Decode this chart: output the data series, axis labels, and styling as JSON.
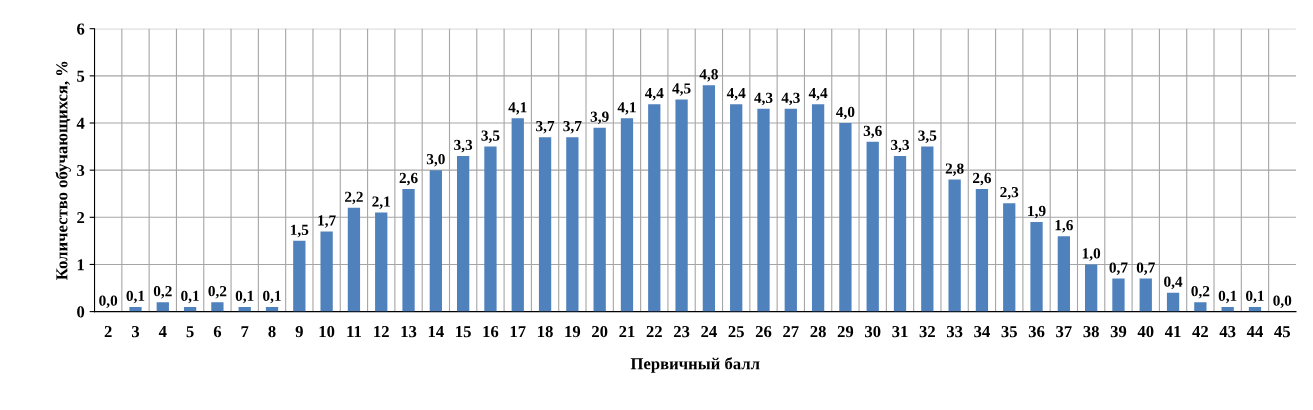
{
  "chart_data": {
    "type": "bar",
    "xlabel": "Первичный балл",
    "ylabel": "Количество обучающихся, %",
    "categories": [
      "2",
      "3",
      "4",
      "5",
      "6",
      "7",
      "8",
      "9",
      "10",
      "11",
      "12",
      "13",
      "14",
      "15",
      "16",
      "17",
      "18",
      "19",
      "20",
      "21",
      "22",
      "23",
      "24",
      "25",
      "26",
      "27",
      "28",
      "29",
      "30",
      "31",
      "32",
      "33",
      "34",
      "35",
      "36",
      "37",
      "38",
      "39",
      "40",
      "41",
      "42",
      "43",
      "44",
      "45"
    ],
    "values": [
      0.0,
      0.1,
      0.2,
      0.1,
      0.2,
      0.1,
      0.1,
      1.5,
      1.7,
      2.2,
      2.1,
      2.6,
      3.0,
      3.3,
      3.5,
      4.1,
      3.7,
      3.7,
      3.9,
      4.1,
      4.4,
      4.5,
      4.8,
      4.4,
      4.3,
      4.3,
      4.4,
      4.0,
      3.6,
      3.3,
      3.5,
      2.8,
      2.6,
      2.3,
      1.9,
      1.6,
      1.0,
      0.7,
      0.7,
      0.4,
      0.2,
      0.1,
      0.1,
      0.0
    ],
    "value_labels": [
      "0,0",
      "0,1",
      "0,2",
      "0,1",
      "0,2",
      "0,1",
      "0,1",
      "1,5",
      "1,7",
      "2,2",
      "2,1",
      "2,6",
      "3,0",
      "3,3",
      "3,5",
      "4,1",
      "3,7",
      "3,7",
      "3,9",
      "4,1",
      "4,4",
      "4,5",
      "4,8",
      "4,4",
      "4,3",
      "4,3",
      "4,4",
      "4,0",
      "3,6",
      "3,3",
      "3,5",
      "2,8",
      "2,6",
      "2,3",
      "1,9",
      "1,6",
      "1,0",
      "0,7",
      "0,7",
      "0,4",
      "0,2",
      "0,1",
      "0,1",
      "0,0"
    ],
    "color": "#4f81bd",
    "ylim": [
      0,
      6
    ],
    "yticks": [
      0,
      1,
      2,
      3,
      4,
      5,
      6
    ],
    "grid": true
  }
}
